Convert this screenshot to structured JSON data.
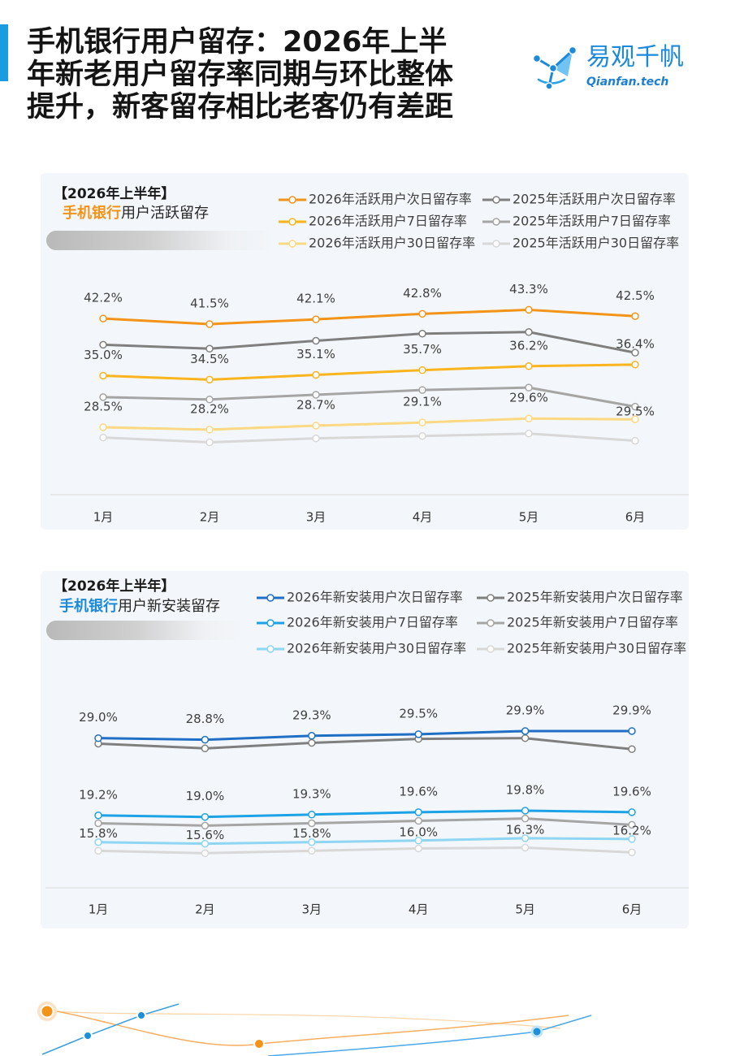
{
  "theme": {
    "accent_color": "#1B9BE0",
    "panel_background": "#F3F6FA"
  },
  "page": {
    "title_lines": [
      "手机银行用户留存：2026年上半",
      "年新老用户留存率同期与环比整体",
      "提升，新客留存相比老客仍有差距"
    ]
  },
  "logo": {
    "icon": "qianfan-logo-icon",
    "name": "易观千帆",
    "domain": "Qianfan.tech",
    "color": "#1C8ADB"
  },
  "chart_data": [
    {
      "type": "line",
      "header": {
        "period": "【2026年上半年】",
        "highlight": "手机银行",
        "subtitle": "用户活跃留存",
        "highlight_color": "#F39418"
      },
      "categories": [
        "1月",
        "2月",
        "3月",
        "4月",
        "5月",
        "6月"
      ],
      "ylim": [
        20,
        50
      ],
      "grid": false,
      "legend_position": "top-right",
      "series": [
        {
          "name": "2026年活跃用户次日留存率",
          "color": "#F39418",
          "values": [
            42.2,
            41.5,
            42.1,
            42.8,
            43.3,
            42.5
          ],
          "data_labels": [
            "42.2%",
            "41.5%",
            "42.1%",
            "42.8%",
            "43.3%",
            "42.5%"
          ]
        },
        {
          "name": "2025年活跃用户次日留存率",
          "color": "#7F7F7F",
          "values": [
            38.9,
            38.4,
            39.4,
            40.3,
            40.5,
            37.9
          ]
        },
        {
          "name": "2026年活跃用户7日留存率",
          "color": "#FAB51E",
          "values": [
            35.0,
            34.5,
            35.1,
            35.7,
            36.2,
            36.4
          ],
          "data_labels": [
            "35.0%",
            "34.5%",
            "35.1%",
            "35.7%",
            "36.2%",
            "36.4%"
          ]
        },
        {
          "name": "2025年活跃用户7日留存率",
          "color": "#A5A5A5",
          "values": [
            32.3,
            32.0,
            32.6,
            33.2,
            33.5,
            31.1
          ]
        },
        {
          "name": "2026年活跃用户30日留存率",
          "color": "#FCD982",
          "values": [
            28.5,
            28.2,
            28.7,
            29.1,
            29.6,
            29.5
          ],
          "data_labels": [
            "28.5%",
            "28.2%",
            "28.7%",
            "29.1%",
            "29.6%",
            "29.5%"
          ]
        },
        {
          "name": "2025年活跃用户30日留存率",
          "color": "#D8D8D8",
          "values": [
            27.2,
            26.6,
            27.1,
            27.4,
            27.7,
            26.8
          ]
        }
      ]
    },
    {
      "type": "line",
      "header": {
        "period": "【2026年上半年】",
        "highlight": "手机银行",
        "subtitle": "用户新安装留存",
        "highlight_color": "#1C8ADB"
      },
      "categories": [
        "1月",
        "2月",
        "3月",
        "4月",
        "5月",
        "6月"
      ],
      "ylim": [
        10,
        40
      ],
      "grid": false,
      "legend_position": "top-right",
      "series": [
        {
          "name": "2026年新安装用户次日留存率",
          "color": "#1F6FC5",
          "values": [
            29.0,
            28.8,
            29.3,
            29.5,
            29.9,
            29.9
          ],
          "data_labels": [
            "29.0%",
            "28.8%",
            "29.3%",
            "29.5%",
            "29.9%",
            "29.9%"
          ]
        },
        {
          "name": "2025年新安装用户次日留存率",
          "color": "#7F7F7F",
          "values": [
            28.3,
            27.7,
            28.4,
            28.9,
            29.0,
            27.6
          ]
        },
        {
          "name": "2026年新安装用户7日留存率",
          "color": "#1CA3E6",
          "values": [
            19.2,
            19.0,
            19.3,
            19.6,
            19.8,
            19.6
          ],
          "data_labels": [
            "19.2%",
            "19.0%",
            "19.3%",
            "19.6%",
            "19.8%",
            "19.6%"
          ]
        },
        {
          "name": "2025年新安装用户7日留存率",
          "color": "#A5A5A5",
          "values": [
            18.2,
            17.9,
            18.2,
            18.5,
            18.8,
            18.0
          ]
        },
        {
          "name": "2026年新安装用户30日留存率",
          "color": "#8ED6F2",
          "values": [
            15.8,
            15.6,
            15.8,
            16.0,
            16.3,
            16.2
          ],
          "data_labels": [
            "15.8%",
            "15.6%",
            "15.8%",
            "16.0%",
            "16.3%",
            "16.2%"
          ]
        },
        {
          "name": "2025年新安装用户30日留存率",
          "color": "#D8D8D8",
          "values": [
            14.7,
            14.4,
            14.7,
            15.0,
            15.1,
            14.5
          ]
        }
      ]
    }
  ]
}
